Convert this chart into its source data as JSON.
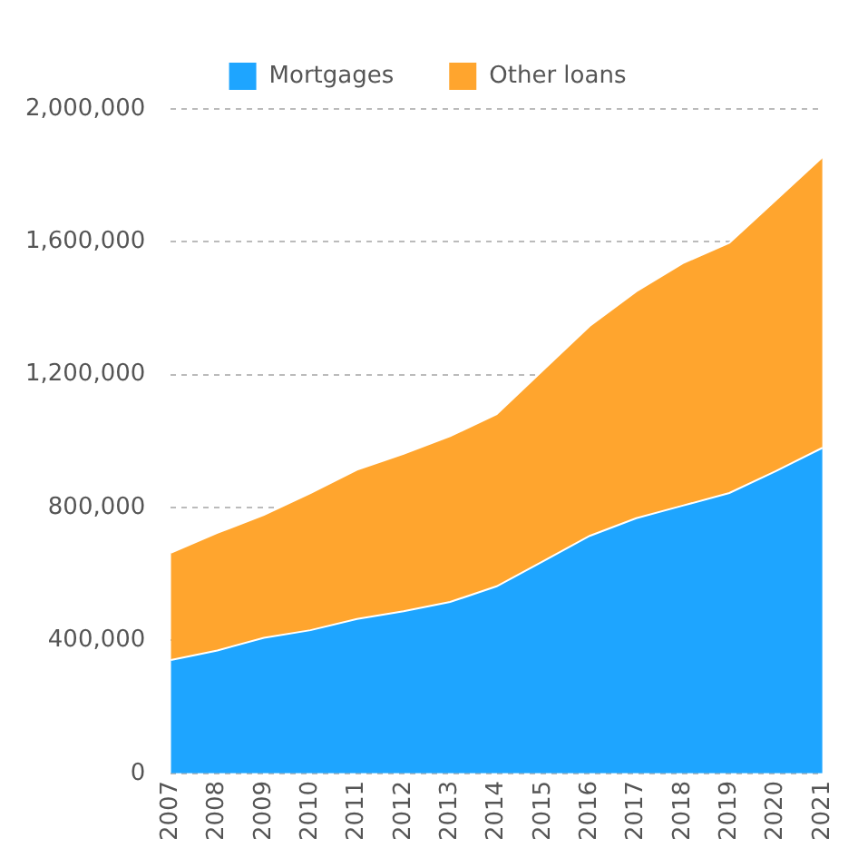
{
  "chart_data": {
    "type": "area",
    "stacked": true,
    "categories": [
      "2007",
      "2008",
      "2009",
      "2010",
      "2011",
      "2012",
      "2013",
      "2014",
      "2015",
      "2016",
      "2017",
      "2018",
      "2019",
      "2020",
      "2021"
    ],
    "series": [
      {
        "name": "Mortgages",
        "color": "#1ea5ff",
        "values": [
          341000,
          370000,
          408000,
          431000,
          465000,
          488000,
          516000,
          563000,
          639000,
          715000,
          768000,
          806000,
          844000,
          910000,
          980000
        ]
      },
      {
        "name": "Other loans",
        "color": "#ffa52e",
        "values": [
          323000,
          354000,
          370000,
          413000,
          449000,
          474000,
          499000,
          518000,
          575000,
          632000,
          683000,
          730000,
          753000,
          816000,
          875000
        ]
      }
    ],
    "ylim": [
      0,
      2000000
    ],
    "yticks": [
      0,
      {
        "value": 400000,
        "label": "400,000"
      },
      {
        "value": 800000,
        "label": "800,000"
      },
      {
        "value": 1200000,
        "label": "1,200,000"
      },
      {
        "value": 1600000,
        "label": "1,600,000"
      },
      {
        "value": 2000000,
        "label": "2,000,000"
      }
    ],
    "grid": "y",
    "legend": "top"
  }
}
